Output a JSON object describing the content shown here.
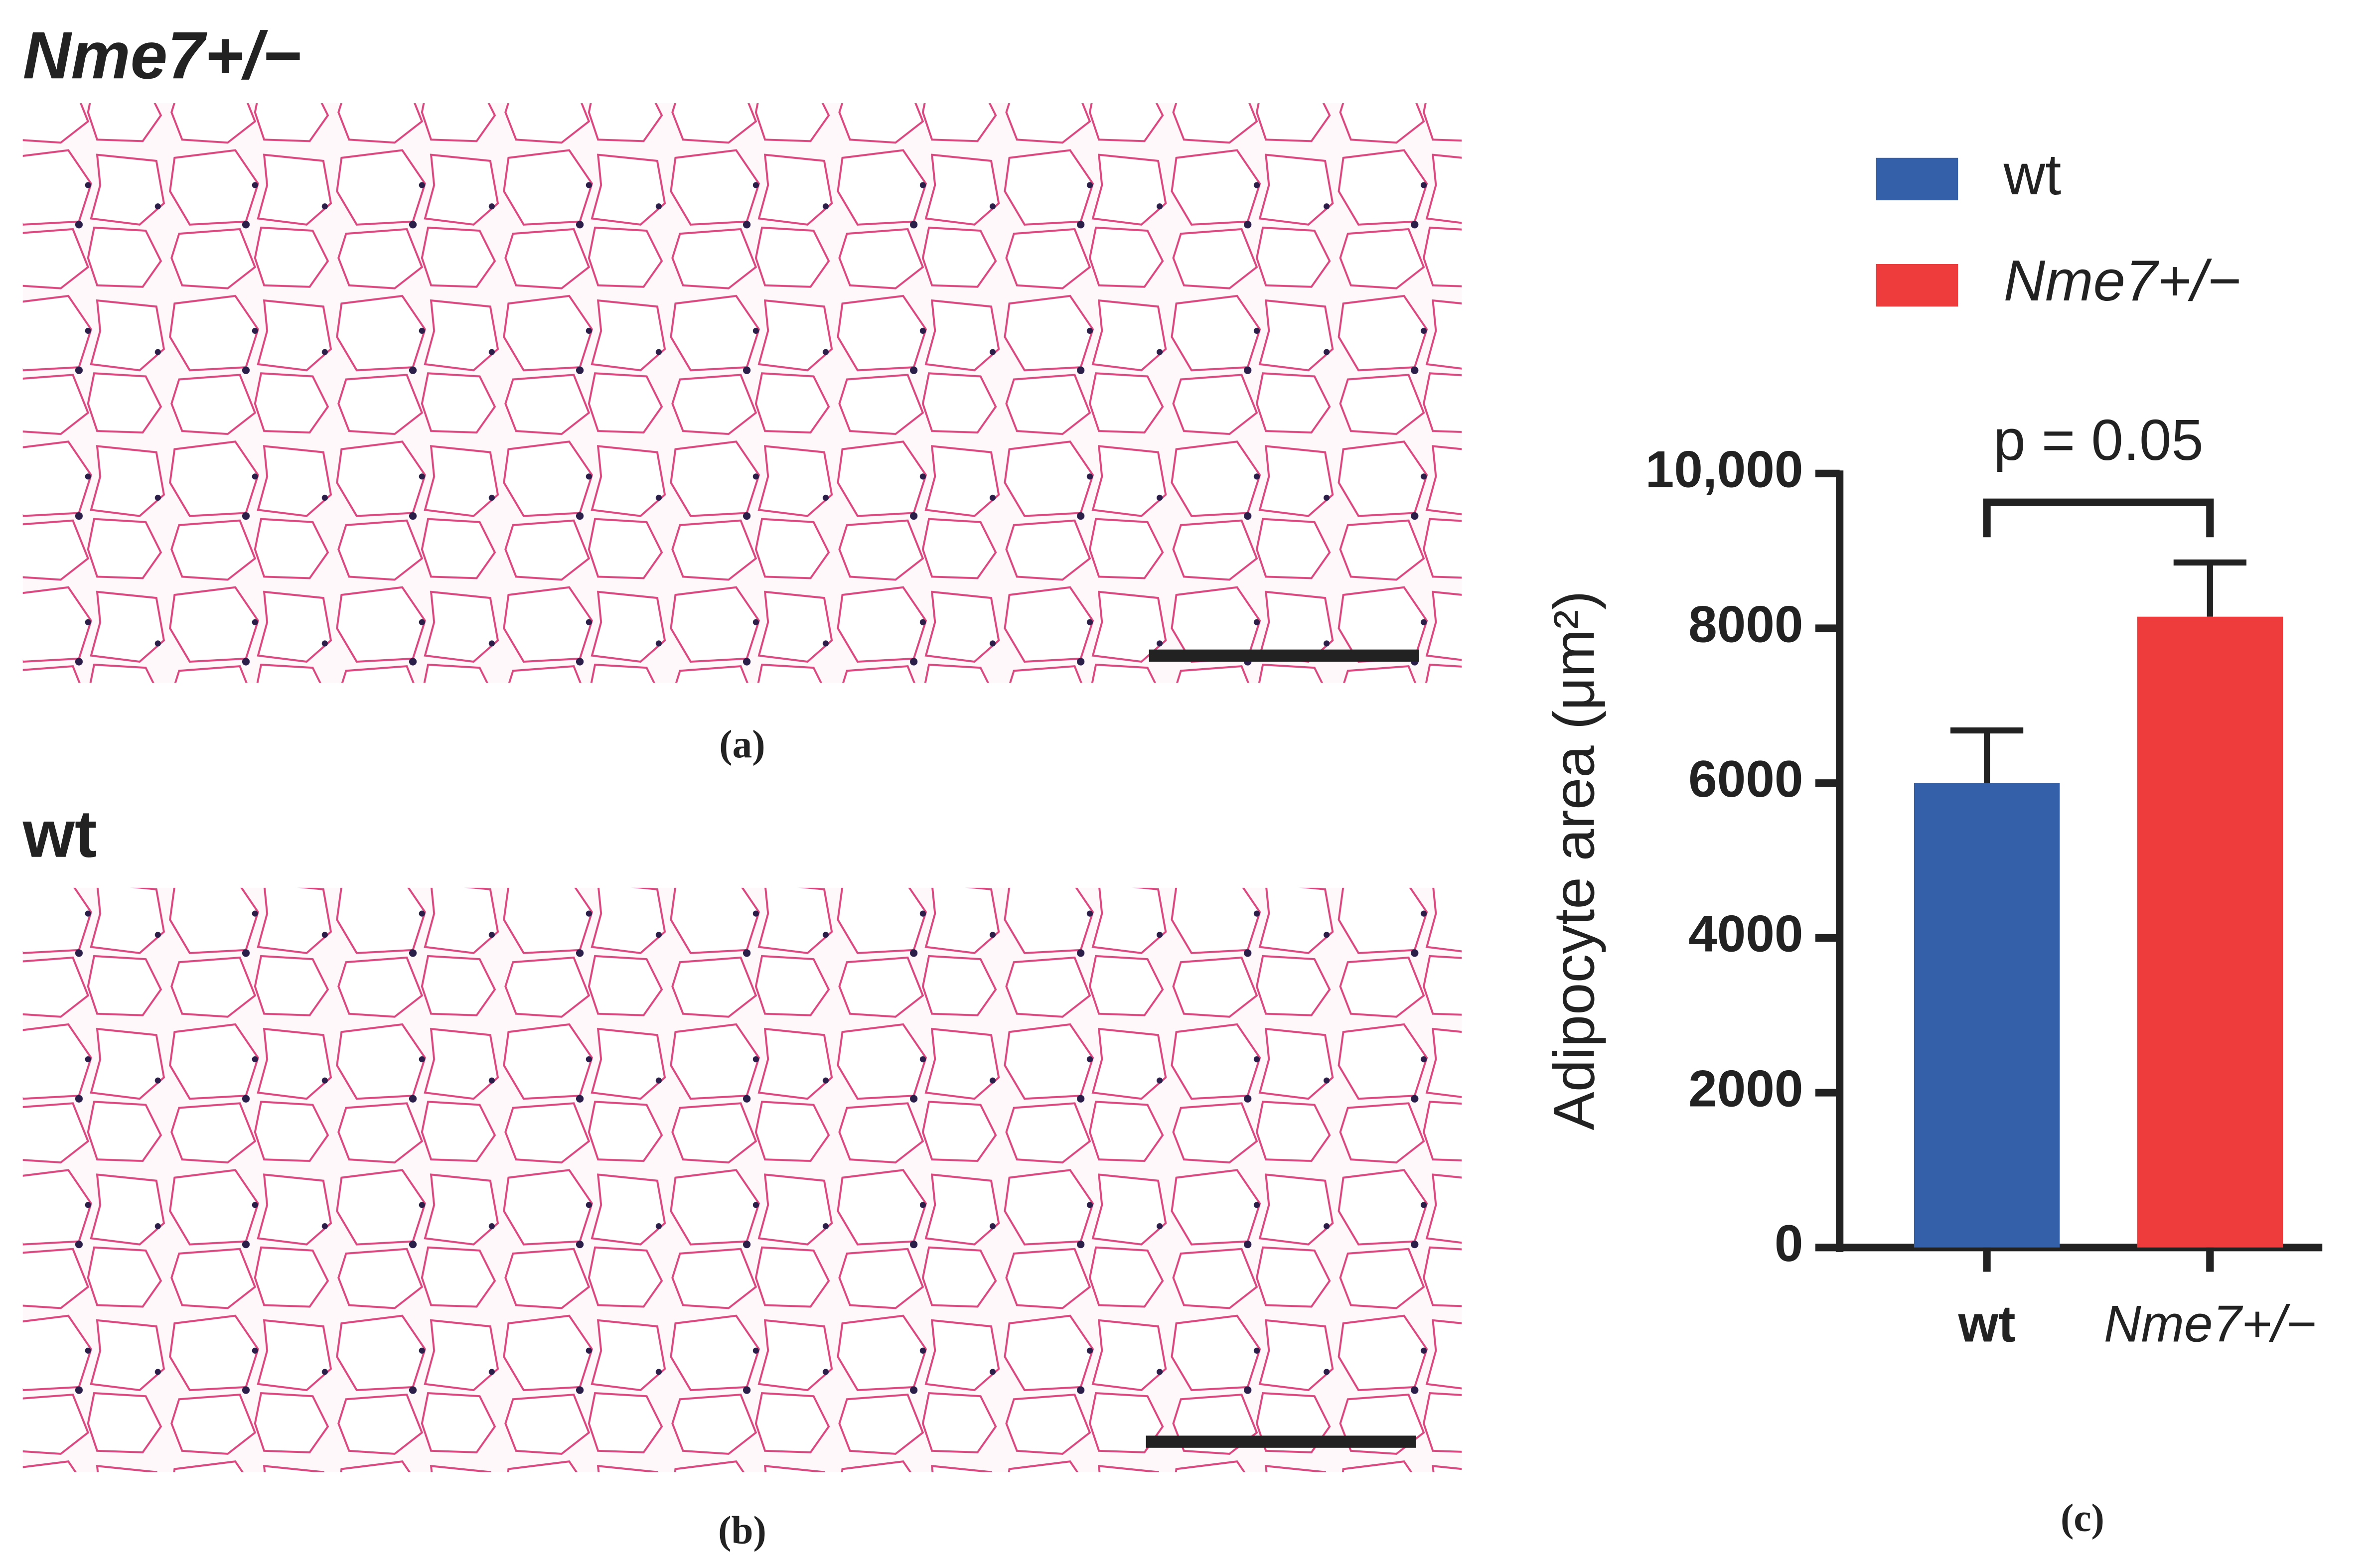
{
  "panels": {
    "a": {
      "title": "Nme7+/−",
      "label": "(a)"
    },
    "b": {
      "title": "wt",
      "label": "(b)"
    },
    "c": {
      "label": "(c)"
    }
  },
  "chart_data": {
    "type": "bar",
    "y_label": "Adipocyte area (μm²)",
    "annotation": "p = 0.05",
    "categories": [
      "wt",
      "Nme7+/−"
    ],
    "values": [
      6000,
      8150
    ],
    "errors": [
      680,
      700
    ],
    "colors": [
      "#3360a9",
      "#ee3b3b"
    ],
    "ylim": [
      0,
      10000
    ],
    "yticks": [
      0,
      2000,
      4000,
      6000,
      8000,
      {
        "value": 10000,
        "label": "10,000"
      }
    ],
    "legend": "top"
  }
}
